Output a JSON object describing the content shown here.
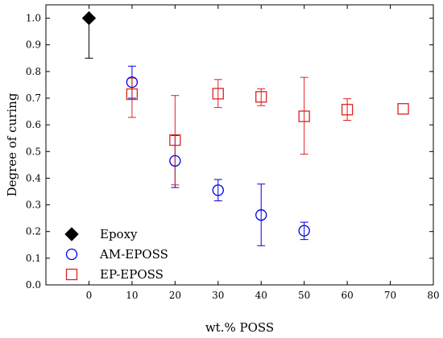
{
  "chart_data": {
    "type": "scatter",
    "xlabel": "wt.% POSS",
    "ylabel": "Degree of curing",
    "xlim": [
      -10,
      80
    ],
    "ylim": [
      0.0,
      1.05
    ],
    "x_ticks": [
      0,
      10,
      20,
      30,
      40,
      50,
      60,
      70,
      80
    ],
    "y_ticks": [
      0.0,
      0.1,
      0.2,
      0.3,
      0.4,
      0.5,
      0.6,
      0.7,
      0.8,
      0.9,
      1.0
    ],
    "legend_position": "bottom-left",
    "grid": false,
    "series": [
      {
        "name": "Epoxy",
        "marker": "filled-diamond",
        "color": "#000000",
        "points": [
          {
            "x": 0,
            "y": 1.0,
            "err_low": 0.85,
            "err_high": 1.0
          }
        ]
      },
      {
        "name": "AM-EPOSS",
        "marker": "open-circle",
        "color": "#0000dd",
        "points": [
          {
            "x": 10,
            "y": 0.76,
            "err_low": 0.7,
            "err_high": 0.82
          },
          {
            "x": 20,
            "y": 0.465,
            "err_low": 0.365,
            "err_high": 0.56
          },
          {
            "x": 30,
            "y": 0.355,
            "err_low": 0.315,
            "err_high": 0.395
          },
          {
            "x": 40,
            "y": 0.262,
            "err_low": 0.147,
            "err_high": 0.378
          },
          {
            "x": 50,
            "y": 0.203,
            "err_low": 0.17,
            "err_high": 0.235
          }
        ]
      },
      {
        "name": "EP-EPOSS",
        "marker": "open-square",
        "color": "#dd2222",
        "points": [
          {
            "x": 10,
            "y": 0.715,
            "err_low": 0.628,
            "err_high": 0.775
          },
          {
            "x": 20,
            "y": 0.543,
            "err_low": 0.375,
            "err_high": 0.71
          },
          {
            "x": 30,
            "y": 0.717,
            "err_low": 0.665,
            "err_high": 0.77
          },
          {
            "x": 40,
            "y": 0.705,
            "err_low": 0.672,
            "err_high": 0.735
          },
          {
            "x": 50,
            "y": 0.632,
            "err_low": 0.49,
            "err_high": 0.778
          },
          {
            "x": 60,
            "y": 0.657,
            "err_low": 0.617,
            "err_high": 0.698
          },
          {
            "x": 73,
            "y": 0.66,
            "err_low": 0.66,
            "err_high": 0.66
          }
        ]
      }
    ]
  }
}
